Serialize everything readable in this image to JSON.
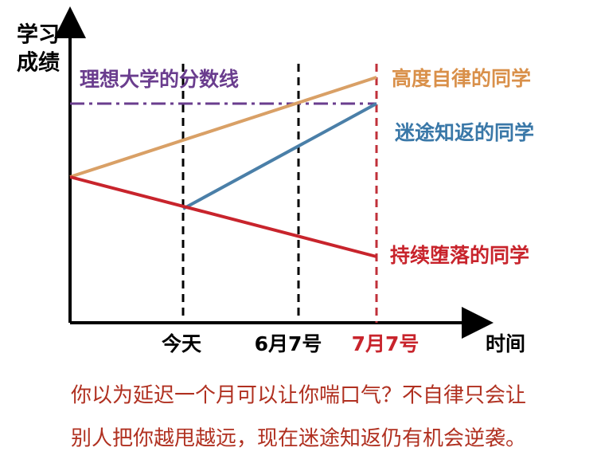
{
  "y_axis_label": [
    "学习",
    "成绩"
  ],
  "x_axis_label": "时间",
  "x_markers": [
    "今天",
    "6月7号",
    "7月7号"
  ],
  "threshold_label": "理想大学的分数线",
  "lines": [
    {
      "label": "高度自律的同学"
    },
    {
      "label": "迷途知返的同学"
    },
    {
      "label": "持续堕落的同学"
    }
  ],
  "caption": [
    "你以为延迟一个月可以让你喘口气？不自律只会让",
    "别人把你越甩越远，现在迷途知返仍有机会逆袭。"
  ]
}
